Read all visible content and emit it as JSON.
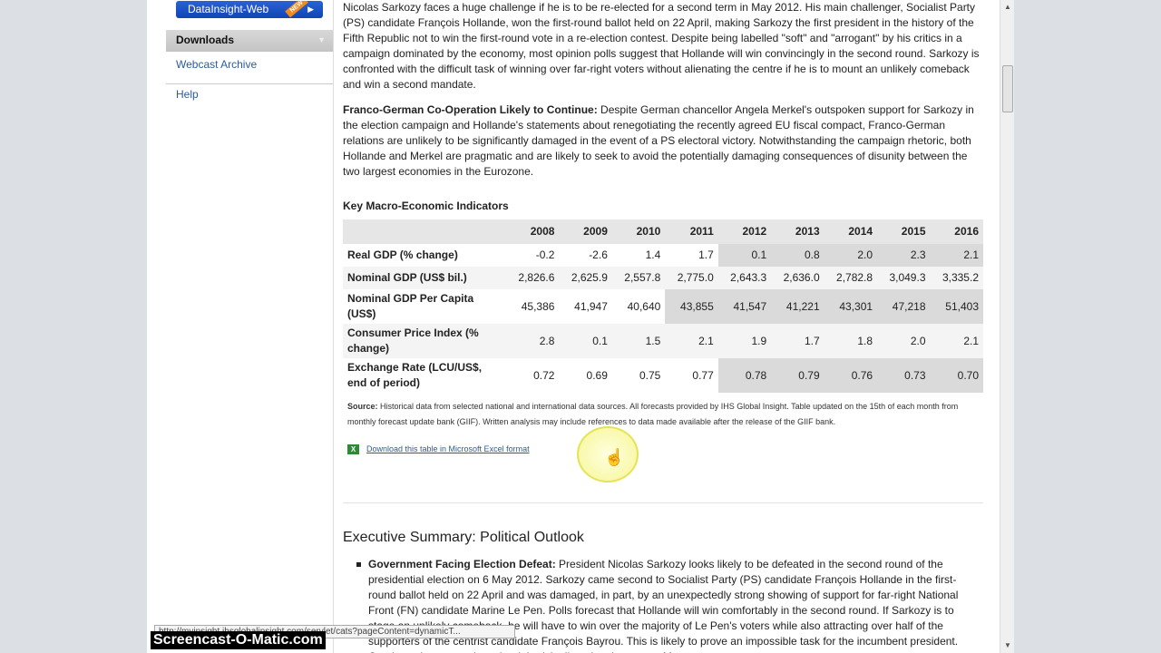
{
  "sidebar": {
    "datainsight": "DataInsight-Web",
    "new_badge": "NEW",
    "downloads": "Downloads",
    "webcast": "Webcast Archive",
    "help": "Help"
  },
  "content": {
    "p1": "Nicolas Sarkozy faces a huge challenge if he is to be re-elected for a second term in May 2012. His main challenger, Socialist Party (PS) candidate François Hollande, won the first-round ballot held on 22 April, making Sarkozy the first president in the history of the Fifth Republic not to win the first-round vote in a re-election contest. Despite being labelled \"soft\" and \"arrogant\" by his critics in a campaign dominated by the economy, most opinion polls suggest that Hollande will win convincingly in the second round. Sarkozy is confronted with the difficult task of winning over far-right voters without alienating the centre if he is to mount an unlikely comeback and win a second mandate.",
    "p2_title": "Franco-German Co-Operation Likely to Continue:",
    "p2": " Despite German chancellor Angela Merkel's outspoken support for Sarkozy in the election campaign and Hollande's statements about renegotiating the recently agreed EU fiscal compact, Franco-German relations are unlikely to be significantly damaged in the event of a PS electoral victory. Notwithstanding the campaign rhetoric, both Hollande and Merkel are pragmatic and are likely to seek to avoid the potentially damaging consequences of disunity between the two largest economies in the Eurozone.",
    "table_title": "Key Macro-Economic Indicators",
    "years": [
      "2008",
      "2009",
      "2010",
      "2011",
      "2012",
      "2013",
      "2014",
      "2015",
      "2016"
    ],
    "rows": [
      {
        "label": "Real GDP (% change)",
        "values": [
          "-0.2",
          "-2.6",
          "1.4",
          "1.7",
          "0.1",
          "0.8",
          "2.0",
          "2.3",
          "2.1"
        ]
      },
      {
        "label": "Nominal GDP (US$ bil.)",
        "values": [
          "2,826.6",
          "2,625.9",
          "2,557.8",
          "2,775.0",
          "2,643.3",
          "2,636.0",
          "2,782.8",
          "3,049.3",
          "3,335.2"
        ]
      },
      {
        "label": "Nominal GDP Per Capita (US$)",
        "values": [
          "45,386",
          "41,947",
          "40,640",
          "43,855",
          "41,547",
          "41,221",
          "43,301",
          "47,218",
          "51,403"
        ]
      },
      {
        "label": "Consumer Price Index (% change)",
        "values": [
          "2.8",
          "0.1",
          "1.5",
          "2.1",
          "1.9",
          "1.7",
          "1.8",
          "2.0",
          "2.1"
        ]
      },
      {
        "label": "Exchange Rate (LCU/US$, end of period)",
        "values": [
          "0.72",
          "0.69",
          "0.75",
          "0.77",
          "0.78",
          "0.79",
          "0.76",
          "0.73",
          "0.70"
        ]
      }
    ],
    "source_label": "Source:",
    "source": " Historical data from selected national and international data sources. All forecasts provided by IHS Global Insight. Table updated on the 15th of each month from monthly forecast update bank (GIIF). Written analysis may include references to data made available after the release of the GIIF bank.",
    "download": "Download this table in Microsoft Excel format",
    "exec_title": "Executive Summary: Political Outlook",
    "bullet_title": "Government Facing Election Defeat:",
    "bullet": " President Nicolas Sarkozy looks likely to be defeated in the second round of the presidential election on 6 May 2012. Sarkozy came second to Socialist Party (PS) candidate François Hollande in the first-round ballot held on 22 April and was damaged, in part, by an unexpectedly strong showing of support for far-right National Front (FN) candidate Marine Le Pen. Polls forecast that Hollande will win comfortably in the second round. If Sarkozy is to stage an unlikely comeback, he will have to win over the majority of Le Pen's voters while also attracting over half of the supporters of the centrist candidate François Bayrou. This is likely to prove an impossible task for the incumbent president. Overly zealous appeals to the right risk alienating the centre. Moreover,"
  },
  "statusbar": "http://myinsight.ihsglobalinsight.com/servlet/cats?pageContent=dynamicT...",
  "watermark": "Screencast-O-Matic.com",
  "colors": {
    "forecast_shade": "#dadada",
    "link": "#2a5c9c",
    "button": "#1a52c4"
  }
}
